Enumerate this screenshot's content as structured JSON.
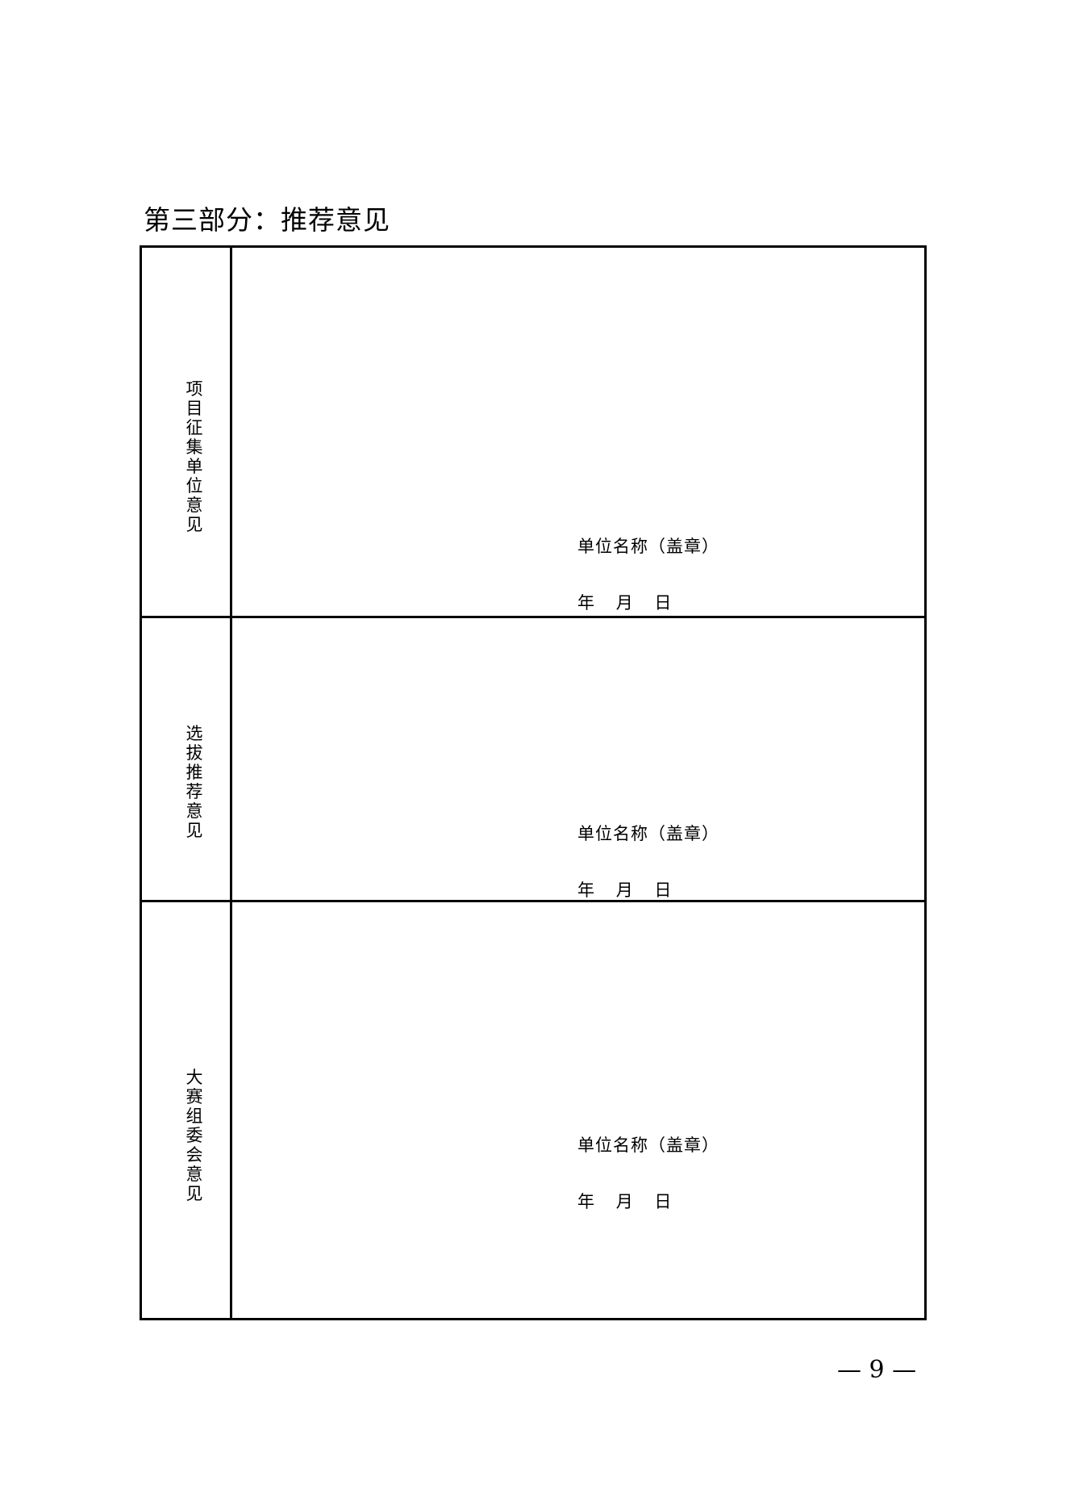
{
  "title": "第三部分：推荐意见",
  "rows": [
    {
      "label": "项目征集单位意见",
      "unit": "单位名称（盖章）",
      "date": "年    月    日"
    },
    {
      "label": "选拔推荐意见",
      "unit": "单位名称（盖章）",
      "date": "年    月    日"
    },
    {
      "label": "大赛组委会意见",
      "unit": "单位名称（盖章）",
      "date": "年    月    日"
    }
  ],
  "page_number": "— 9 —"
}
